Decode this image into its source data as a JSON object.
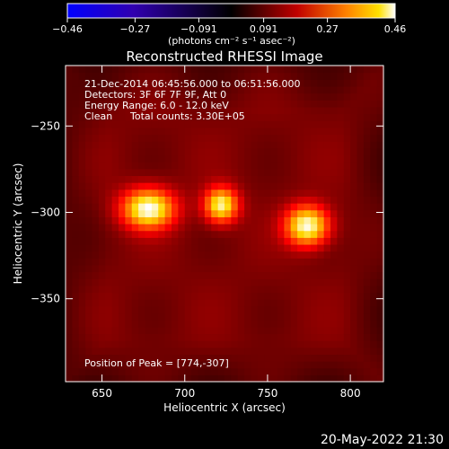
{
  "chart_data": {
    "type": "heatmap",
    "title": "Reconstructed RHESSI Image",
    "xlabel": "Heliocentric X (arcsec)",
    "ylabel": "Heliocentric Y (arcsec)",
    "xlim": [
      628,
      820
    ],
    "ylim": [
      -398,
      -215
    ],
    "x_ticks": [
      650,
      700,
      750,
      800
    ],
    "x_tick_labels": [
      "650",
      "700",
      "750",
      "800"
    ],
    "y_ticks": [
      -250,
      -300,
      -350
    ],
    "y_tick_labels": [
      "−250",
      "−300",
      "−350"
    ],
    "colorbar": {
      "min": -0.46,
      "max": 0.46,
      "ticks": [
        -0.46,
        -0.27,
        -0.091,
        0.091,
        0.27,
        0.46
      ],
      "tick_labels": [
        "−0.46",
        "−0.27",
        "−0.091",
        "0.091",
        "0.27",
        "0.46"
      ],
      "unit_label": "(photons cm⁻² s⁻¹ asec⁻²)",
      "colors": [
        "#0000ff",
        "#400080",
        "#000000",
        "#800000",
        "#ff4000",
        "#ffc000",
        "#ffffff"
      ]
    },
    "background_level": 0.09,
    "sources": [
      {
        "x": 678,
        "y": -297,
        "sx": 11,
        "sy": 8,
        "amp": 0.37
      },
      {
        "x": 722,
        "y": -295,
        "sx": 7,
        "sy": 7,
        "amp": 0.34
      },
      {
        "x": 774,
        "y": -307,
        "sx": 9,
        "sy": 8,
        "amp": 0.37
      }
    ],
    "grid": false
  },
  "annotations": {
    "time_range": "21-Dec-2014 06:45:56.000 to 06:51:56.000",
    "detectors": "Detectors: 3F 6F 7F 9F, Att 0",
    "energy": "Energy Range: 6.0 - 12.0 keV",
    "clean": "Clean",
    "total_counts": "Total counts: 3.30E+05",
    "peak": "Position of Peak = [774,-307]"
  },
  "footer": {
    "date": "20-May-2022 21:30"
  }
}
